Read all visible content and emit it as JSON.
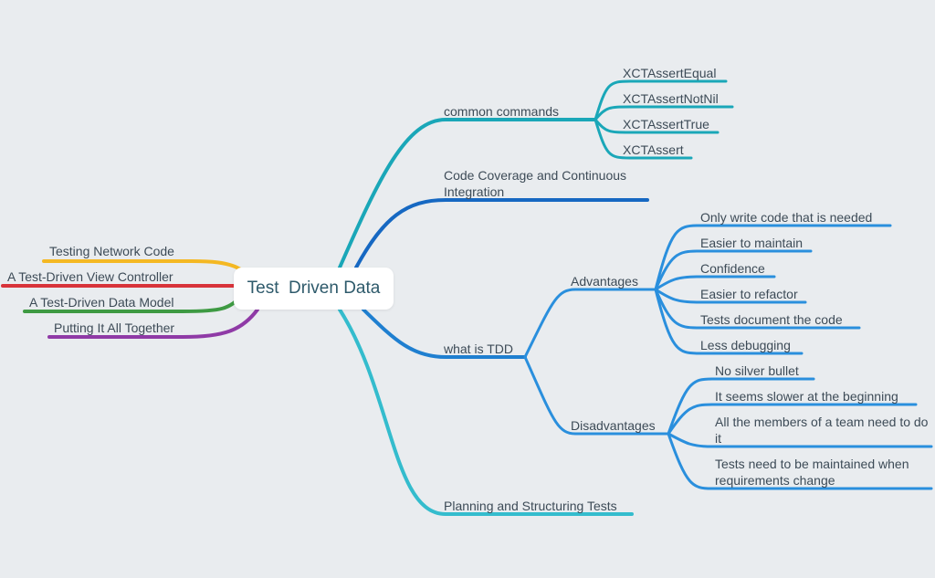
{
  "root": {
    "title": "Test  Driven Data"
  },
  "left_branches": [
    {
      "label": "Testing Network Code",
      "color": "#f4b823"
    },
    {
      "label": "A Test-Driven View Controller",
      "color": "#d8333a"
    },
    {
      "label": "A Test-Driven Data Model",
      "color": "#3e9a43"
    },
    {
      "label": "Putting It All Together",
      "color": "#8f3aa6"
    }
  ],
  "right_branches": {
    "common_commands": {
      "label": "common commands",
      "color": "#1aa7b8",
      "children": [
        "XCTAssertEqual",
        "XCTAssertNotNil",
        "XCTAssertTrue",
        "XCTAssert"
      ]
    },
    "code_coverage": {
      "label": "Code Coverage and Continuous Integration",
      "color": "#1668c2"
    },
    "what_is_tdd": {
      "label": "what is TDD",
      "color": "#1f7fd0",
      "advantages": {
        "label": "Advantages",
        "children": [
          "Only write code that is needed",
          "Easier to maintain",
          "Confidence",
          "Easier to refactor",
          "Tests document the code",
          "Less debugging"
        ]
      },
      "disadvantages": {
        "label": "Disadvantages",
        "children": [
          "No silver bullet",
          "It seems slower at the beginning",
          "All the members of a team need to do it",
          "Tests need to be maintained when requirements change"
        ]
      }
    },
    "planning": {
      "label": "Planning and Structuring Tests",
      "color": "#34bccd"
    }
  },
  "child_line_color": "#2a8fdd"
}
